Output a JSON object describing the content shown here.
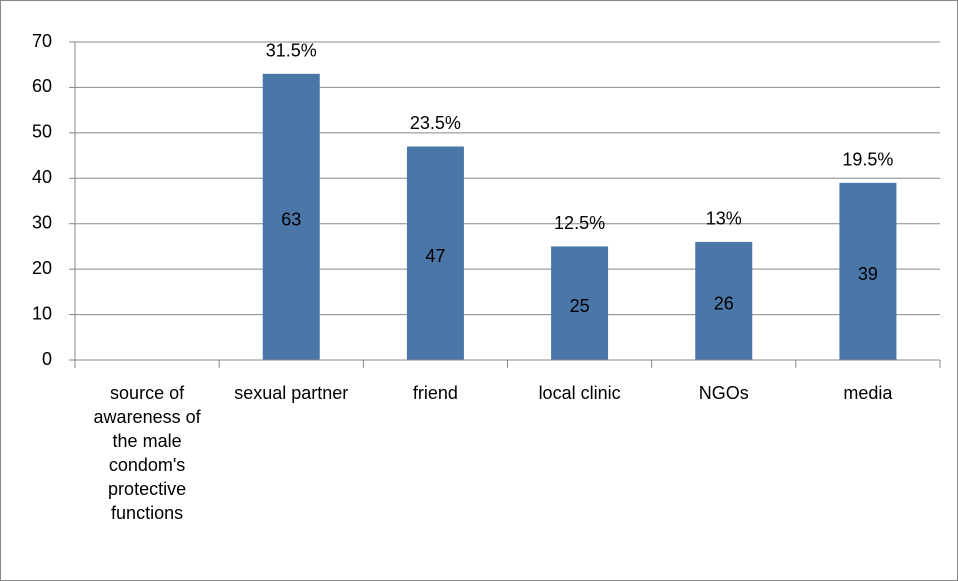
{
  "chart_data": {
    "type": "bar",
    "categories": [
      "source of awareness of the male condom's protective functions",
      "sexual partner",
      "friend",
      "local clinic",
      "NGOs",
      "media"
    ],
    "values": [
      null,
      63,
      47,
      25,
      26,
      39
    ],
    "annotations": [
      null,
      "31.5%",
      "23.5%",
      "12.5%",
      "13%",
      "19.5%"
    ],
    "color": "#4a76a8",
    "ylim": [
      0,
      70
    ],
    "yticks": [
      0,
      10,
      20,
      30,
      40,
      50,
      60,
      70
    ],
    "grid": true
  }
}
